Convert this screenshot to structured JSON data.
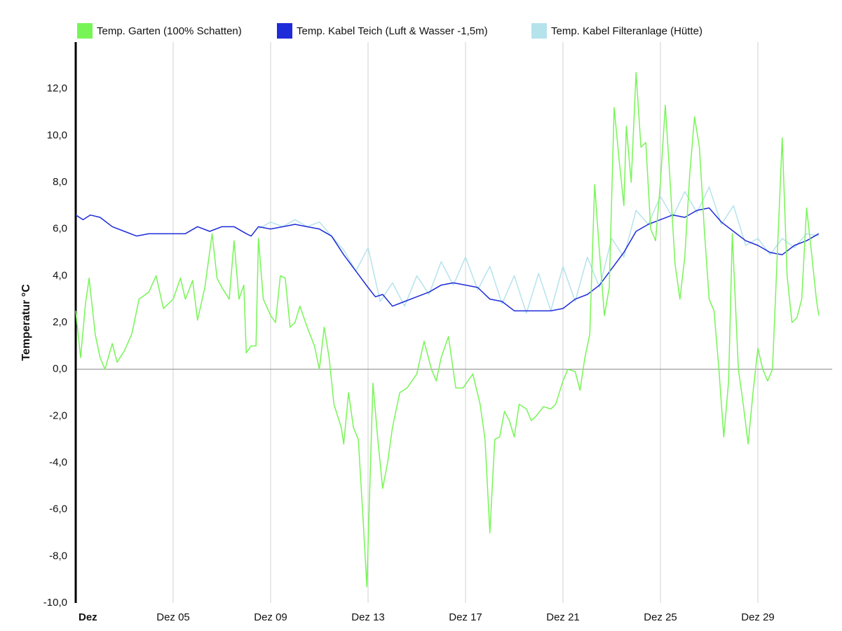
{
  "chart_data": {
    "type": "line",
    "y_label": "Temperatur °C",
    "xlim": [
      1,
      32.05
    ],
    "ylim": [
      -10,
      14
    ],
    "grid": "x",
    "legend": "top",
    "xticks": [
      {
        "value": 1,
        "label": "Dez"
      },
      {
        "value": 5,
        "label": "Dez 05"
      },
      {
        "value": 9,
        "label": "Dez 09"
      },
      {
        "value": 13,
        "label": "Dez 13"
      },
      {
        "value": 17,
        "label": "Dez 17"
      },
      {
        "value": 21,
        "label": "Dez 21"
      },
      {
        "value": 25,
        "label": "Dez 25"
      },
      {
        "value": 29,
        "label": "Dez 29"
      }
    ],
    "yticks": [
      {
        "value": -10,
        "label": "-10,0"
      },
      {
        "value": -8,
        "label": "-8,0"
      },
      {
        "value": -6,
        "label": "-6,0"
      },
      {
        "value": -4,
        "label": "-4,0"
      },
      {
        "value": -2,
        "label": "-2,0"
      },
      {
        "value": 0,
        "label": "0,0"
      },
      {
        "value": 2,
        "label": "2,0"
      },
      {
        "value": 4,
        "label": "4,0"
      },
      {
        "value": 6,
        "label": "6,0"
      },
      {
        "value": 8,
        "label": "8,0"
      },
      {
        "value": 10,
        "label": "10,0"
      },
      {
        "value": 12,
        "label": "12,0"
      }
    ],
    "series": [
      {
        "name": "Temp. Garten (100% Schatten)",
        "color": "#77f556",
        "x": [
          1.0,
          1.2,
          1.4,
          1.55,
          1.8,
          2.0,
          2.2,
          2.5,
          2.7,
          3.0,
          3.3,
          3.6,
          4.0,
          4.3,
          4.6,
          5.0,
          5.3,
          5.5,
          5.8,
          6.0,
          6.3,
          6.6,
          6.8,
          7.0,
          7.3,
          7.5,
          7.7,
          7.9,
          8.0,
          8.2,
          8.4,
          8.5,
          8.7,
          9.0,
          9.2,
          9.4,
          9.6,
          9.8,
          10.0,
          10.2,
          10.5,
          10.8,
          11.0,
          11.2,
          11.4,
          11.6,
          11.9,
          12.0,
          12.2,
          12.4,
          12.6,
          12.8,
          12.95,
          13.2,
          13.4,
          13.6,
          13.8,
          14.0,
          14.3,
          14.6,
          15.0,
          15.3,
          15.6,
          15.8,
          16.0,
          16.3,
          16.6,
          16.9,
          17.1,
          17.3,
          17.6,
          17.8,
          18.0,
          18.2,
          18.4,
          18.6,
          18.8,
          19.0,
          19.2,
          19.5,
          19.7,
          19.9,
          20.2,
          20.5,
          20.7,
          21.0,
          21.2,
          21.5,
          21.7,
          21.9,
          22.1,
          22.3,
          22.5,
          22.7,
          22.9,
          23.1,
          23.3,
          23.5,
          23.6,
          23.8,
          24.0,
          24.2,
          24.4,
          24.6,
          24.8,
          25.0,
          25.2,
          25.4,
          25.6,
          25.8,
          26.0,
          26.2,
          26.4,
          26.6,
          26.8,
          27.0,
          27.2,
          27.4,
          27.6,
          27.8,
          27.95,
          28.2,
          28.4,
          28.6,
          28.8,
          29.0,
          29.2,
          29.4,
          29.6,
          29.8,
          30.0,
          30.2,
          30.4,
          30.6,
          30.8,
          31.0,
          31.2,
          31.4,
          31.5
        ],
        "values": [
          2.5,
          0.5,
          2.8,
          3.9,
          1.5,
          0.5,
          0.0,
          1.1,
          0.3,
          0.8,
          1.5,
          3.0,
          3.3,
          4.0,
          2.6,
          3.0,
          3.9,
          3.0,
          3.8,
          2.1,
          3.5,
          5.8,
          3.9,
          3.5,
          3.0,
          5.5,
          3.0,
          3.6,
          0.7,
          1.0,
          1.0,
          5.6,
          3.0,
          2.3,
          2.0,
          4.0,
          3.9,
          1.8,
          2.0,
          2.7,
          1.8,
          1.0,
          0.0,
          1.8,
          0.5,
          -1.5,
          -2.5,
          -3.2,
          -1.0,
          -2.5,
          -3.0,
          -6.5,
          -9.3,
          -0.6,
          -3.0,
          -5.1,
          -4.0,
          -2.5,
          -1.0,
          -0.8,
          -0.2,
          1.2,
          0.0,
          -0.5,
          0.5,
          1.4,
          -0.8,
          -0.8,
          -0.5,
          -0.2,
          -1.5,
          -3.0,
          -7.0,
          -3.0,
          -2.9,
          -1.8,
          -2.2,
          -2.9,
          -1.5,
          -1.7,
          -2.2,
          -2.0,
          -1.6,
          -1.7,
          -1.5,
          -0.5,
          0.0,
          -0.1,
          -0.9,
          0.5,
          1.5,
          7.9,
          5.0,
          2.3,
          3.5,
          11.2,
          9.0,
          7.0,
          10.4,
          8.0,
          12.7,
          9.5,
          9.7,
          6.0,
          5.5,
          8.0,
          11.3,
          8.0,
          4.5,
          3.0,
          4.8,
          8.3,
          10.8,
          9.5,
          6.0,
          3.0,
          2.5,
          0.0,
          -2.9,
          -0.5,
          5.8,
          0.0,
          -1.5,
          -3.2,
          -1.0,
          0.9,
          0.0,
          -0.5,
          0.0,
          5.0,
          9.9,
          4.0,
          2.0,
          2.2,
          3.0,
          6.9,
          5.0,
          3.0,
          2.3
        ]
      },
      {
        "name": "Temp. Kabel Teich (Luft & Wasser -1,5m)",
        "color": "#1d2bd8",
        "x": [
          1.0,
          1.3,
          1.6,
          2.0,
          2.5,
          3.0,
          3.5,
          4.0,
          4.5,
          5.0,
          5.5,
          6.0,
          6.5,
          7.0,
          7.5,
          8.0,
          8.2,
          8.5,
          9.0,
          9.5,
          10.0,
          10.5,
          11.0,
          11.5,
          12.0,
          12.5,
          13.0,
          13.3,
          13.6,
          14.0,
          14.5,
          15.0,
          15.5,
          16.0,
          16.5,
          17.0,
          17.5,
          18.0,
          18.5,
          19.0,
          19.5,
          20.0,
          20.5,
          21.0,
          21.5,
          22.0,
          22.5,
          23.0,
          23.5,
          24.0,
          24.5,
          25.0,
          25.5,
          26.0,
          26.5,
          27.0,
          27.5,
          28.0,
          28.5,
          29.0,
          29.5,
          30.0,
          30.5,
          31.0,
          31.5
        ],
        "values": [
          6.6,
          6.4,
          6.6,
          6.5,
          6.1,
          5.9,
          5.7,
          5.8,
          5.8,
          5.8,
          5.8,
          6.1,
          5.9,
          6.1,
          6.1,
          5.8,
          5.7,
          6.1,
          6.0,
          6.1,
          6.2,
          6.1,
          6.0,
          5.7,
          4.9,
          4.2,
          3.5,
          3.1,
          3.2,
          2.7,
          2.9,
          3.1,
          3.3,
          3.6,
          3.7,
          3.6,
          3.5,
          3.0,
          2.9,
          2.5,
          2.5,
          2.5,
          2.5,
          2.6,
          3.0,
          3.2,
          3.6,
          4.3,
          5.0,
          5.9,
          6.2,
          6.4,
          6.6,
          6.5,
          6.8,
          6.9,
          6.3,
          5.9,
          5.5,
          5.3,
          5.0,
          4.9,
          5.3,
          5.5,
          5.8
        ]
      },
      {
        "name": "Temp. Kabel Filteranlage (Hütte)",
        "color": "#b5e3ec",
        "x": [
          8.5,
          9.0,
          9.5,
          10.0,
          10.5,
          11.0,
          11.5,
          12.0,
          12.5,
          13.0,
          13.5,
          14.0,
          14.5,
          15.0,
          15.5,
          16.0,
          16.5,
          17.0,
          17.5,
          18.0,
          18.5,
          19.0,
          19.5,
          20.0,
          20.5,
          21.0,
          21.5,
          22.0,
          22.5,
          23.0,
          23.5,
          24.0,
          24.5,
          25.0,
          25.5,
          26.0,
          26.5,
          27.0,
          27.5,
          28.0,
          28.5,
          29.0,
          29.5,
          30.0,
          30.5,
          31.0,
          31.5
        ],
        "values": [
          6.0,
          6.3,
          6.1,
          6.4,
          6.1,
          6.3,
          5.7,
          5.1,
          4.2,
          5.2,
          2.9,
          3.7,
          2.7,
          4.0,
          3.2,
          4.6,
          3.6,
          4.8,
          3.4,
          4.4,
          2.8,
          4.0,
          2.4,
          4.1,
          2.5,
          4.4,
          2.9,
          4.8,
          3.5,
          5.6,
          4.8,
          6.8,
          6.2,
          7.4,
          6.5,
          7.6,
          6.7,
          7.8,
          6.2,
          7.0,
          5.3,
          5.6,
          4.9,
          5.6,
          5.2,
          5.8,
          5.7
        ]
      }
    ]
  }
}
